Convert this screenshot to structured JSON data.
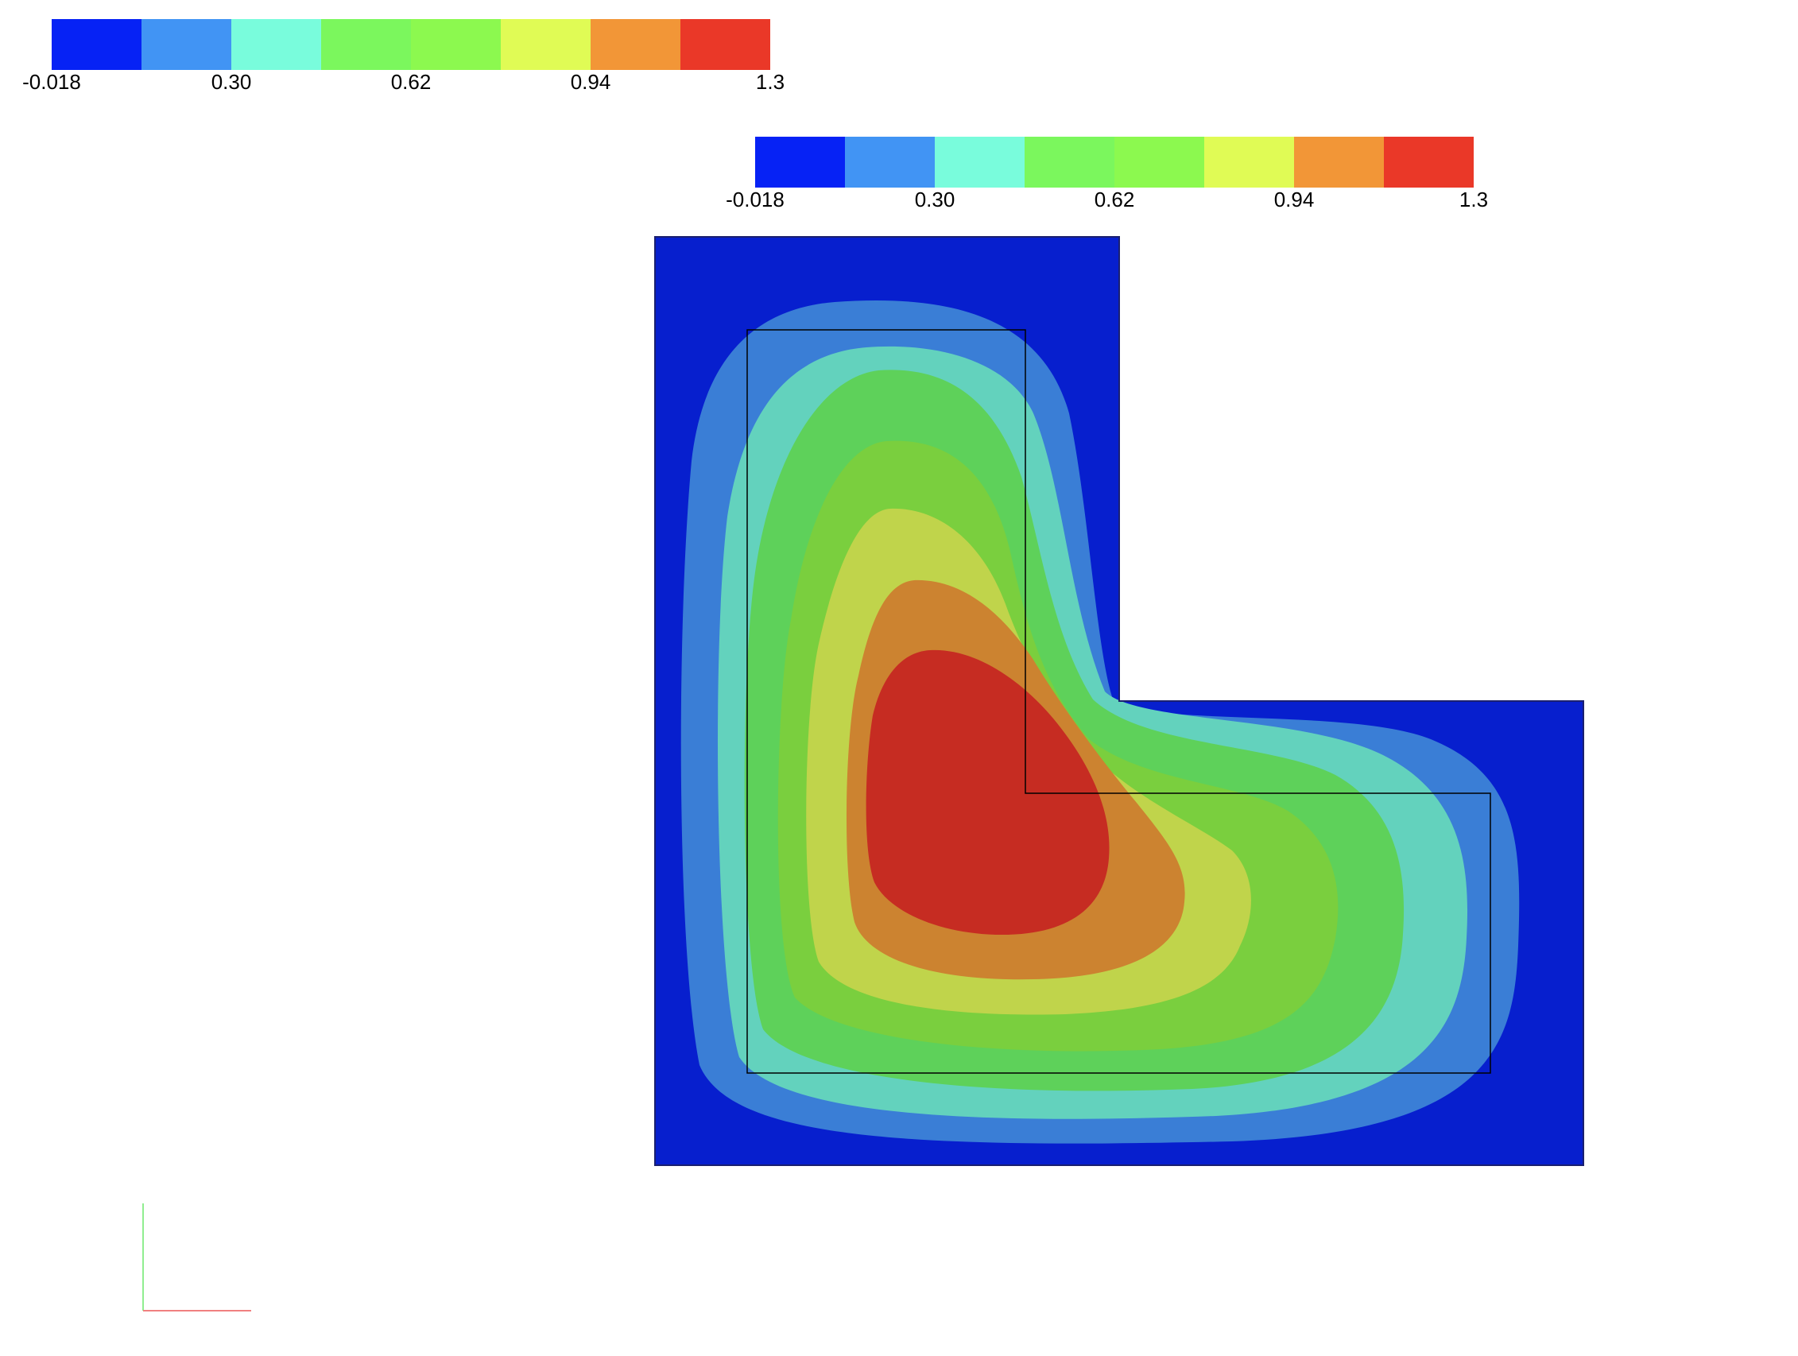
{
  "colorbars": [
    {
      "colors": [
        "#0622f5",
        "#4194f4",
        "#79fcdc",
        "#7bf75d",
        "#8cf94f",
        "#e0fb55",
        "#f29637",
        "#ea3828"
      ],
      "tick_labels": [
        "-0.018",
        "0.30",
        "0.62",
        "0.94",
        "1.3"
      ]
    },
    {
      "colors": [
        "#0622f5",
        "#4194f4",
        "#79fcdc",
        "#7bf75d",
        "#8cf94f",
        "#e0fb55",
        "#f29637",
        "#ea3828"
      ],
      "tick_labels": [
        "-0.018",
        "0.30",
        "0.62",
        "0.94",
        "1.3"
      ]
    }
  ],
  "field": {
    "domain": "L-shaped",
    "background_color": "#071fce",
    "band_colors": [
      "#3a7ed6",
      "#63d2bd",
      "#5ed15a",
      "#7acf3e",
      "#c0d44b",
      "#cc8330",
      "#c62c22"
    ],
    "overlay_outline": "inner-L",
    "value_range": [
      -0.018,
      1.3
    ]
  },
  "axes_triad": {
    "x_color": "#f08080",
    "y_color": "#90ee90"
  }
}
